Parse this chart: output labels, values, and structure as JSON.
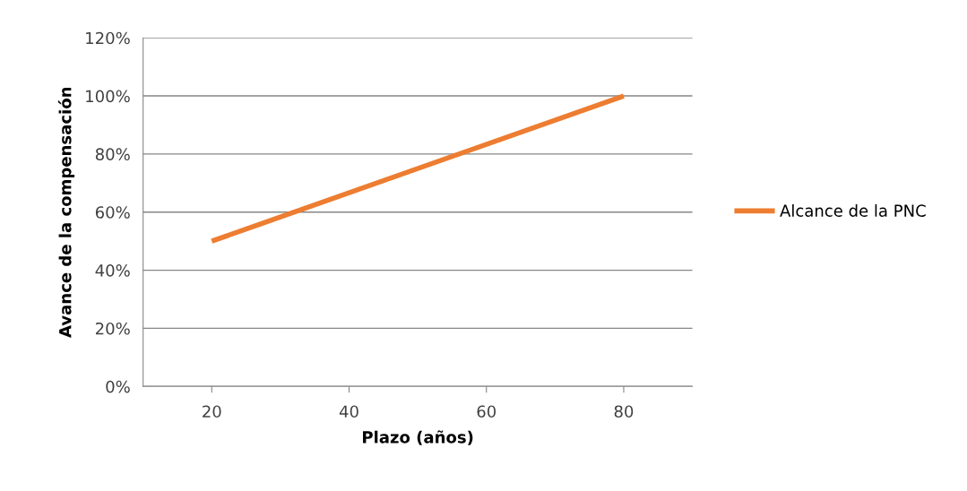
{
  "chart_data": {
    "type": "line",
    "xlabel": "Plazo (años)",
    "ylabel": "Avance de la compensación",
    "x": [
      20,
      80
    ],
    "series": [
      {
        "name": "Alcance de la PNC",
        "color": "#ed7d31",
        "values": [
          50,
          100
        ]
      }
    ],
    "xlim": [
      10,
      90
    ],
    "xticks": [
      20,
      40,
      60,
      80
    ],
    "ylim": [
      0,
      120
    ],
    "yticks": [
      {
        "value": 0,
        "label": "0%"
      },
      {
        "value": 20,
        "label": "20%"
      },
      {
        "value": 40,
        "label": "40%"
      },
      {
        "value": 60,
        "label": "60%"
      },
      {
        "value": 80,
        "label": "80%"
      },
      {
        "value": 100,
        "label": "100%"
      },
      {
        "value": 120,
        "label": "120%"
      }
    ],
    "grid": "y",
    "legend": "right",
    "marker": "none",
    "line_style": "solid"
  }
}
